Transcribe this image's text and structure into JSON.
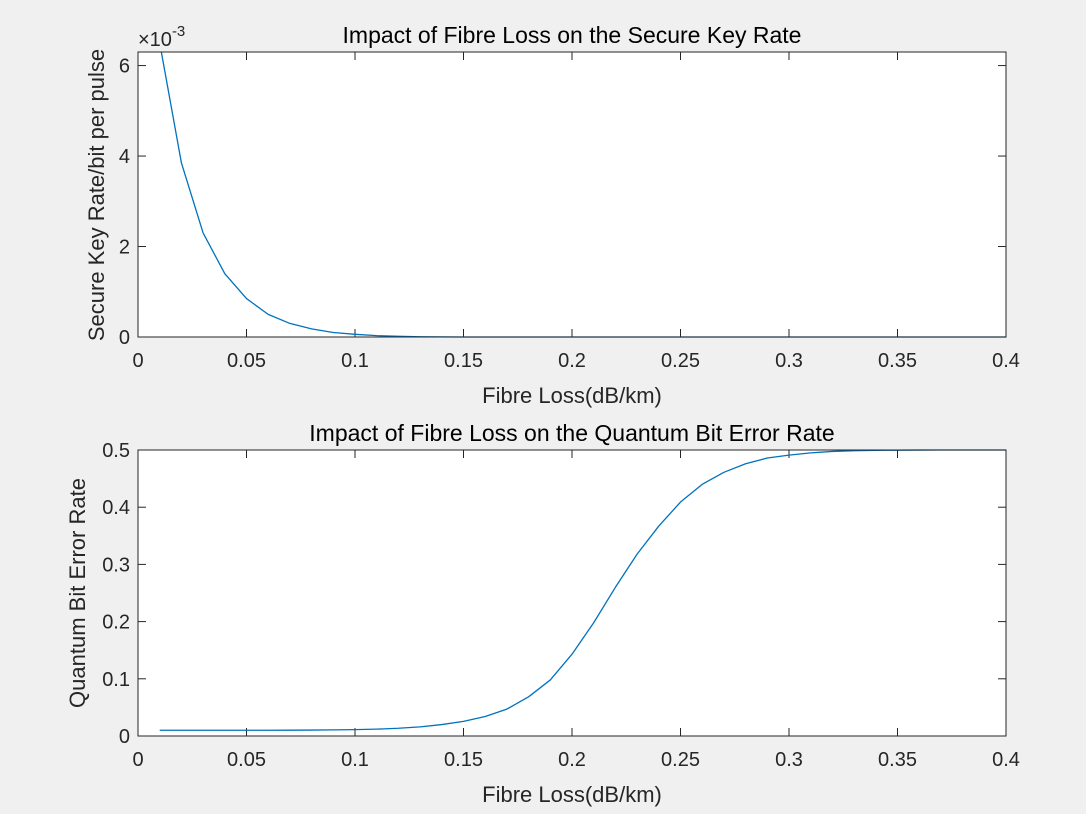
{
  "colors": {
    "figure_bg": "#f0f0f0",
    "axes_bg": "#ffffff",
    "axis": "#262626",
    "series": "#0072bd"
  },
  "chart_data": [
    {
      "type": "line",
      "title": "Impact of Fibre Loss on the Secure Key Rate",
      "xlabel": "Fibre Loss(dB/km)",
      "ylabel": "Secure Key Rate/bit per pulse",
      "y_exponent_base": "×10",
      "y_exponent_power": "-3",
      "xlim": [
        0,
        0.4
      ],
      "ylim": [
        0,
        0.0063
      ],
      "xticks": [
        0,
        0.05,
        0.1,
        0.15,
        0.2,
        0.25,
        0.3,
        0.35,
        0.4
      ],
      "xtick_labels": [
        "0",
        "0.05",
        "0.1",
        "0.15",
        "0.2",
        "0.25",
        "0.3",
        "0.35",
        "0.4"
      ],
      "yticks": [
        0,
        0.002,
        0.004,
        0.006
      ],
      "ytick_labels": [
        "0",
        "2",
        "4",
        "6"
      ],
      "grid": false,
      "x": [
        0.01,
        0.02,
        0.03,
        0.04,
        0.05,
        0.06,
        0.07,
        0.08,
        0.09,
        0.1,
        0.11,
        0.12,
        0.13,
        0.14,
        0.15,
        0.16,
        0.17,
        0.18,
        0.19,
        0.2,
        0.21,
        0.22,
        0.23,
        0.24,
        0.25,
        0.26,
        0.27,
        0.28,
        0.29,
        0.3,
        0.31,
        0.32,
        0.33,
        0.34,
        0.35,
        0.36,
        0.37,
        0.38,
        0.39,
        0.4
      ],
      "y": [
        0.0065,
        0.00385,
        0.0023,
        0.0014,
        0.00085,
        0.0005,
        0.0003,
        0.00018,
        0.0001,
        6e-05,
        3e-05,
        1.5e-05,
        5e-06,
        2e-06,
        0,
        0,
        0,
        0,
        0,
        0,
        0,
        0,
        0,
        0,
        0,
        0,
        0,
        0,
        0,
        0,
        0,
        0,
        0,
        0,
        0,
        0,
        0,
        0,
        0,
        0
      ]
    },
    {
      "type": "line",
      "title": "Impact of Fibre Loss on the Quantum Bit Error Rate",
      "xlabel": "Fibre Loss(dB/km)",
      "ylabel": "Quantum Bit Error Rate",
      "xlim": [
        0,
        0.4
      ],
      "ylim": [
        0,
        0.5
      ],
      "xticks": [
        0,
        0.05,
        0.1,
        0.15,
        0.2,
        0.25,
        0.3,
        0.35,
        0.4
      ],
      "xtick_labels": [
        "0",
        "0.05",
        "0.1",
        "0.15",
        "0.2",
        "0.25",
        "0.3",
        "0.35",
        "0.4"
      ],
      "yticks": [
        0,
        0.1,
        0.2,
        0.3,
        0.4,
        0.5
      ],
      "ytick_labels": [
        "0",
        "0.1",
        "0.2",
        "0.3",
        "0.4",
        "0.5"
      ],
      "grid": false,
      "x": [
        0.01,
        0.02,
        0.03,
        0.04,
        0.05,
        0.06,
        0.07,
        0.08,
        0.09,
        0.1,
        0.11,
        0.12,
        0.13,
        0.14,
        0.15,
        0.16,
        0.17,
        0.18,
        0.19,
        0.2,
        0.21,
        0.22,
        0.23,
        0.24,
        0.25,
        0.26,
        0.27,
        0.28,
        0.29,
        0.3,
        0.31,
        0.32,
        0.33,
        0.34,
        0.35,
        0.36,
        0.37,
        0.38,
        0.39,
        0.4
      ],
      "y": [
        0.01,
        0.01,
        0.01,
        0.01,
        0.01,
        0.0101,
        0.0102,
        0.0104,
        0.0107,
        0.0112,
        0.012,
        0.0135,
        0.016,
        0.02,
        0.0255,
        0.034,
        0.047,
        0.0685,
        0.098,
        0.143,
        0.198,
        0.26,
        0.318,
        0.367,
        0.409,
        0.44,
        0.461,
        0.476,
        0.486,
        0.491,
        0.495,
        0.4975,
        0.4988,
        0.4994,
        0.4997,
        0.4999,
        0.5,
        0.5,
        0.5,
        0.5
      ]
    }
  ]
}
